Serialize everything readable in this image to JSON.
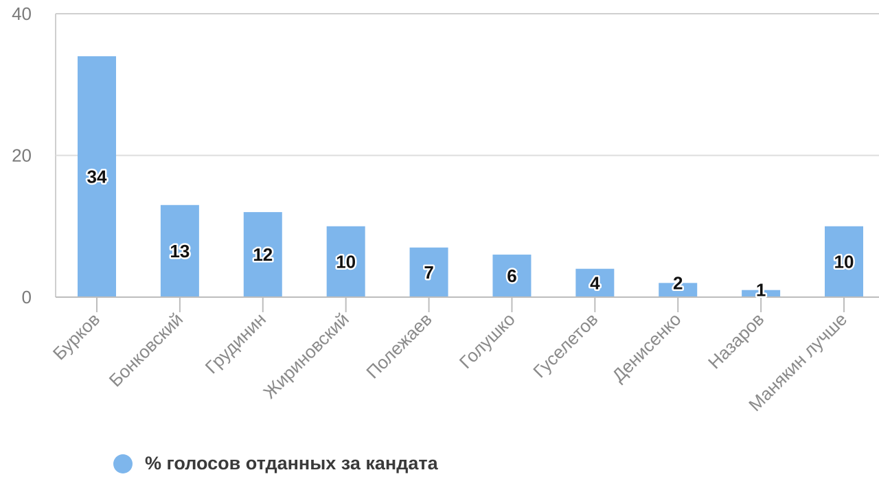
{
  "chart_data": {
    "type": "bar",
    "categories": [
      "Бурков",
      "Бонковский",
      "Грудинин",
      "Жириновский",
      "Полежаев",
      "Голушко",
      "Гуселетов",
      "Денисенко",
      "Назаров",
      "Манякин лучше"
    ],
    "values": [
      34,
      13,
      12,
      10,
      7,
      6,
      4,
      2,
      1,
      10
    ],
    "series": [
      {
        "name": "% голосов отданных за кандата",
        "values": [
          34,
          13,
          12,
          10,
          7,
          6,
          4,
          2,
          1,
          10
        ]
      }
    ],
    "yticks": [
      "0",
      "20",
      "40"
    ],
    "ylim": [
      0,
      40
    ],
    "grid": true,
    "legend": "bottom-left",
    "colors": {
      "bar": "#7eb6ec",
      "grid": "#dddddd",
      "axis": "#bdbdbd",
      "frame": "#cfcfcf"
    }
  }
}
